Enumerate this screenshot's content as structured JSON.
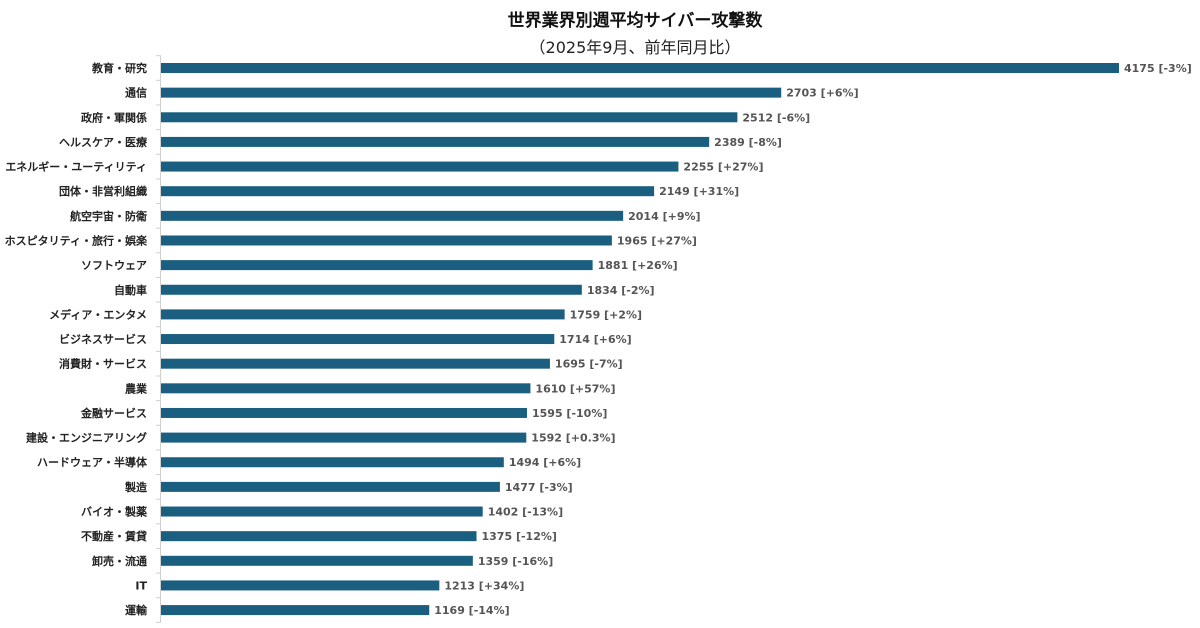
{
  "chart_data": {
    "type": "bar",
    "orientation": "horizontal",
    "title": "世界業界別週平均サイバー攻撃数",
    "subtitle": "（2025年9月、前年同月比）",
    "xlabel": "",
    "ylabel": "",
    "xlim": [
      0,
      4175
    ],
    "grid": false,
    "bar_color": "#1b5f80",
    "categories": [
      "教育・研究",
      "通信",
      "政府・軍関係",
      "ヘルスケア・医療",
      "エネルギー・ユーティリティ",
      "団体・非営利組織",
      "航空宇宙・防衛",
      "ホスピタリティ・旅行・娯楽",
      "ソフトウェア",
      "自動車",
      "メディア・エンタメ",
      "ビジネスサービス",
      "消費財・サービス",
      "農業",
      "金融サービス",
      "建設・エンジニアリング",
      "ハードウェア・半導体",
      "製造",
      "バイオ・製薬",
      "不動産・賃貸",
      "卸売・流通",
      "IT",
      "運輸"
    ],
    "values": [
      4175,
      2703,
      2512,
      2389,
      2255,
      2149,
      2014,
      1965,
      1881,
      1834,
      1759,
      1714,
      1695,
      1610,
      1595,
      1592,
      1494,
      1477,
      1402,
      1375,
      1359,
      1213,
      1169
    ],
    "data_labels": [
      "4175 [-3%]",
      "2703 [+6%]",
      "2512 [-6%]",
      "2389 [-8%]",
      "2255 [+27%]",
      "2149 [+31%]",
      "2014 [+9%]",
      "1965 [+27%]",
      "1881 [+26%]",
      "1834 [-2%]",
      "1759 [+2%]",
      "1714 [+6%]",
      "1695 [-7%]",
      "1610 [+57%]",
      "1595 [-10%]",
      "1592 [+0.3%]",
      "1494 [+6%]",
      "1477 [-3%]",
      "1402 [-13%]",
      "1375 [-12%]",
      "1359 [-16%]",
      "1213 [+34%]",
      "1169 [-14%]"
    ]
  }
}
